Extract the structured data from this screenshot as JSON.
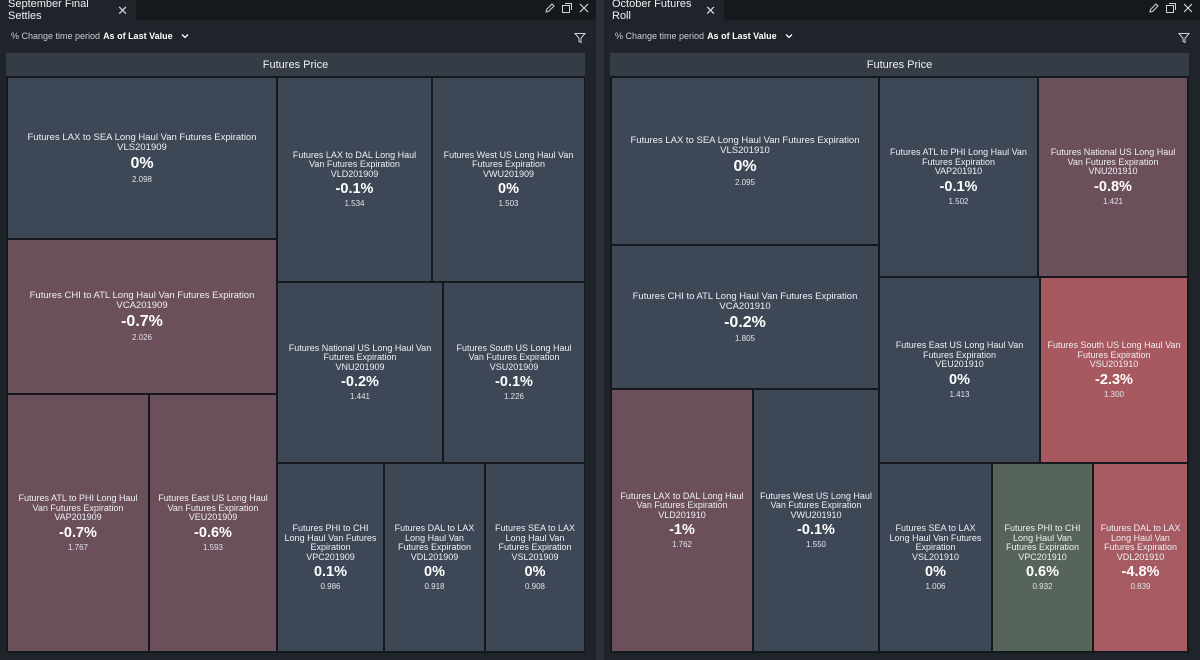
{
  "panels": [
    {
      "tab_title": "September Final Settles",
      "period_label": "% Change time period",
      "period_value": "As of Last Value",
      "chart_title": "Futures Price",
      "tiles": [
        {
          "name": "Futures LAX to SEA Long Haul Van Futures Expiration",
          "code": "VLS201909",
          "pct": "0%",
          "price": "2.098",
          "change": 0.0,
          "color": "#3e4756"
        },
        {
          "name": "Futures CHI to ATL Long Haul Van Futures Expiration",
          "code": "VCA201909",
          "pct": "-0.7%",
          "price": "2.026",
          "change": -0.7,
          "color": "#6b4f5a"
        },
        {
          "name": "Futures ATL to PHI Long Haul Van Futures Expiration",
          "code": "VAP201909",
          "pct": "-0.7%",
          "price": "1.767",
          "change": -0.7,
          "color": "#6b4f5a"
        },
        {
          "name": "Futures East US Long Haul Van Futures Expiration",
          "code": "VEU201909",
          "pct": "-0.6%",
          "price": "1.593",
          "change": -0.6,
          "color": "#6b4f5a"
        },
        {
          "name": "Futures LAX to DAL Long Haul Van Futures Expiration",
          "code": "VLD201909",
          "pct": "-0.1%",
          "price": "1.534",
          "change": -0.1,
          "color": "#3e4756"
        },
        {
          "name": "Futures West US Long Haul Van Futures Expiration",
          "code": "VWU201909",
          "pct": "0%",
          "price": "1.503",
          "change": 0.0,
          "color": "#3e4756"
        },
        {
          "name": "Futures National US Long Haul Van Futures Expiration",
          "code": "VNU201909",
          "pct": "-0.2%",
          "price": "1.441",
          "change": -0.2,
          "color": "#3e4756"
        },
        {
          "name": "Futures South US Long Haul Van Futures Expiration",
          "code": "VSU201909",
          "pct": "-0.1%",
          "price": "1.226",
          "change": -0.1,
          "color": "#3e4756"
        },
        {
          "name": "Futures PHI to CHI Long Haul Van Futures Expiration",
          "code": "VPC201909",
          "pct": "0.1%",
          "price": "0.986",
          "change": 0.1,
          "color": "#3e4756"
        },
        {
          "name": "Futures DAL to LAX Long Haul Van Futures Expiration",
          "code": "VDL201909",
          "pct": "0%",
          "price": "0.918",
          "change": 0.0,
          "color": "#3e4756"
        },
        {
          "name": "Futures SEA to LAX Long Haul Van Futures Expiration",
          "code": "VSL201909",
          "pct": "0%",
          "price": "0.908",
          "change": 0.0,
          "color": "#3e4756"
        }
      ]
    },
    {
      "tab_title": "October Futures Roll",
      "period_label": "% Change time period",
      "period_value": "As of Last Value",
      "chart_title": "Futures Price",
      "tiles": [
        {
          "name": "Futures LAX to SEA Long Haul Van Futures Expiration",
          "code": "VLS201910",
          "pct": "0%",
          "price": "2.095",
          "change": 0.0,
          "color": "#3e4756"
        },
        {
          "name": "Futures CHI to ATL Long Haul Van Futures Expiration",
          "code": "VCA201910",
          "pct": "-0.2%",
          "price": "1.805",
          "change": -0.2,
          "color": "#3e4756"
        },
        {
          "name": "Futures LAX to DAL Long Haul Van Futures Expiration",
          "code": "VLD201910",
          "pct": "-1%",
          "price": "1.762",
          "change": -1.0,
          "color": "#6b4f5a"
        },
        {
          "name": "Futures West US Long Haul Van Futures Expiration",
          "code": "VWU201910",
          "pct": "-0.1%",
          "price": "1.550",
          "change": -0.1,
          "color": "#3e4756"
        },
        {
          "name": "Futures ATL to PHI Long Haul Van Futures Expiration",
          "code": "VAP201910",
          "pct": "-0.1%",
          "price": "1.502",
          "change": -0.1,
          "color": "#3e4756"
        },
        {
          "name": "Futures National US Long Haul Van Futures Expiration",
          "code": "VNU201910",
          "pct": "-0.8%",
          "price": "1.421",
          "change": -0.8,
          "color": "#6b4f5a"
        },
        {
          "name": "Futures East US Long Haul Van Futures Expiration",
          "code": "VEU201910",
          "pct": "0%",
          "price": "1.413",
          "change": 0.0,
          "color": "#3e4756"
        },
        {
          "name": "Futures South US Long Haul Van Futures Expiration",
          "code": "VSU201910",
          "pct": "-2.3%",
          "price": "1.300",
          "change": -2.3,
          "color": "#a8585f"
        },
        {
          "name": "Futures SEA to LAX Long Haul Van Futures Expiration",
          "code": "VSL201910",
          "pct": "0%",
          "price": "1.006",
          "change": 0.0,
          "color": "#3e4756"
        },
        {
          "name": "Futures PHI to CHI Long Haul Van Futures Expiration",
          "code": "VPC201910",
          "pct": "0.6%",
          "price": "0.932",
          "change": 0.6,
          "color": "#566459"
        },
        {
          "name": "Futures DAL to LAX Long Haul Van Futures Expiration",
          "code": "VDL201910",
          "pct": "-4.8%",
          "price": "0.839",
          "change": -4.8,
          "color": "#a65a62"
        }
      ]
    }
  ]
}
